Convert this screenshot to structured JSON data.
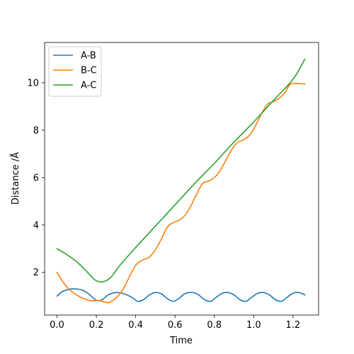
{
  "chart_data": {
    "type": "line",
    "xlabel": "Time",
    "ylabel": "Distance /Å",
    "xlim": [
      -0.063,
      1.33
    ],
    "ylim": [
      0.2,
      11.7
    ],
    "xticks": [
      0.0,
      0.2,
      0.4,
      0.6,
      0.8,
      1.0,
      1.2
    ],
    "xtick_labels": [
      "0.0",
      "0.2",
      "0.4",
      "0.6",
      "0.8",
      "1.0",
      "1.2"
    ],
    "yticks": [
      2,
      4,
      6,
      8,
      10
    ],
    "ytick_labels": [
      "2",
      "4",
      "6",
      "8",
      "10"
    ],
    "grid": false,
    "legend_position": "top-left",
    "series": [
      {
        "name": "A-B",
        "color": "#1f77b4",
        "points": [
          [
            0.0,
            1.0
          ],
          [
            0.03,
            1.2
          ],
          [
            0.07,
            1.3
          ],
          [
            0.1,
            1.3
          ],
          [
            0.13,
            1.25
          ],
          [
            0.16,
            1.1
          ],
          [
            0.2,
            0.82
          ],
          [
            0.23,
            0.85
          ],
          [
            0.26,
            1.05
          ],
          [
            0.3,
            1.15
          ],
          [
            0.34,
            1.1
          ],
          [
            0.38,
            0.95
          ],
          [
            0.41,
            0.78
          ],
          [
            0.44,
            0.85
          ],
          [
            0.47,
            1.05
          ],
          [
            0.5,
            1.15
          ],
          [
            0.53,
            1.1
          ],
          [
            0.56,
            0.9
          ],
          [
            0.59,
            0.78
          ],
          [
            0.62,
            0.9
          ],
          [
            0.65,
            1.1
          ],
          [
            0.69,
            1.15
          ],
          [
            0.72,
            1.05
          ],
          [
            0.75,
            0.85
          ],
          [
            0.78,
            0.78
          ],
          [
            0.81,
            0.95
          ],
          [
            0.84,
            1.12
          ],
          [
            0.87,
            1.15
          ],
          [
            0.9,
            1.05
          ],
          [
            0.93,
            0.85
          ],
          [
            0.96,
            0.78
          ],
          [
            0.99,
            0.95
          ],
          [
            1.02,
            1.12
          ],
          [
            1.05,
            1.15
          ],
          [
            1.08,
            1.05
          ],
          [
            1.11,
            0.85
          ],
          [
            1.14,
            0.78
          ],
          [
            1.17,
            0.95
          ],
          [
            1.2,
            1.12
          ],
          [
            1.23,
            1.15
          ],
          [
            1.26,
            1.05
          ]
        ]
      },
      {
        "name": "B-C",
        "color": "#ff7f0e",
        "points": [
          [
            0.0,
            2.0
          ],
          [
            0.03,
            1.6
          ],
          [
            0.06,
            1.3
          ],
          [
            0.1,
            1.05
          ],
          [
            0.14,
            0.88
          ],
          [
            0.18,
            0.8
          ],
          [
            0.21,
            0.82
          ],
          [
            0.23,
            0.78
          ],
          [
            0.26,
            0.72
          ],
          [
            0.28,
            0.8
          ],
          [
            0.31,
            1.0
          ],
          [
            0.34,
            1.35
          ],
          [
            0.37,
            1.85
          ],
          [
            0.4,
            2.3
          ],
          [
            0.43,
            2.5
          ],
          [
            0.47,
            2.65
          ],
          [
            0.5,
            2.95
          ],
          [
            0.53,
            3.4
          ],
          [
            0.56,
            3.9
          ],
          [
            0.59,
            4.1
          ],
          [
            0.62,
            4.2
          ],
          [
            0.65,
            4.4
          ],
          [
            0.68,
            4.8
          ],
          [
            0.71,
            5.3
          ],
          [
            0.74,
            5.75
          ],
          [
            0.77,
            5.85
          ],
          [
            0.8,
            6.0
          ],
          [
            0.83,
            6.3
          ],
          [
            0.86,
            6.75
          ],
          [
            0.89,
            7.2
          ],
          [
            0.92,
            7.5
          ],
          [
            0.95,
            7.6
          ],
          [
            0.98,
            7.8
          ],
          [
            1.01,
            8.2
          ],
          [
            1.04,
            8.7
          ],
          [
            1.07,
            9.1
          ],
          [
            1.1,
            9.2
          ],
          [
            1.13,
            9.35
          ],
          [
            1.16,
            9.6
          ],
          [
            1.19,
            9.95
          ],
          [
            1.26,
            9.95
          ]
        ]
      },
      {
        "name": "A-C",
        "color": "#2ca02c",
        "points": [
          [
            0.0,
            3.0
          ],
          [
            0.05,
            2.75
          ],
          [
            0.1,
            2.45
          ],
          [
            0.15,
            2.05
          ],
          [
            0.19,
            1.7
          ],
          [
            0.22,
            1.6
          ],
          [
            0.25,
            1.65
          ],
          [
            0.28,
            1.85
          ],
          [
            0.32,
            2.3
          ],
          [
            0.4,
            3.05
          ],
          [
            0.5,
            3.95
          ],
          [
            0.6,
            4.85
          ],
          [
            0.7,
            5.75
          ],
          [
            0.8,
            6.6
          ],
          [
            0.9,
            7.5
          ],
          [
            1.0,
            8.35
          ],
          [
            1.1,
            9.25
          ],
          [
            1.2,
            10.15
          ],
          [
            1.26,
            11.0
          ]
        ]
      }
    ]
  }
}
